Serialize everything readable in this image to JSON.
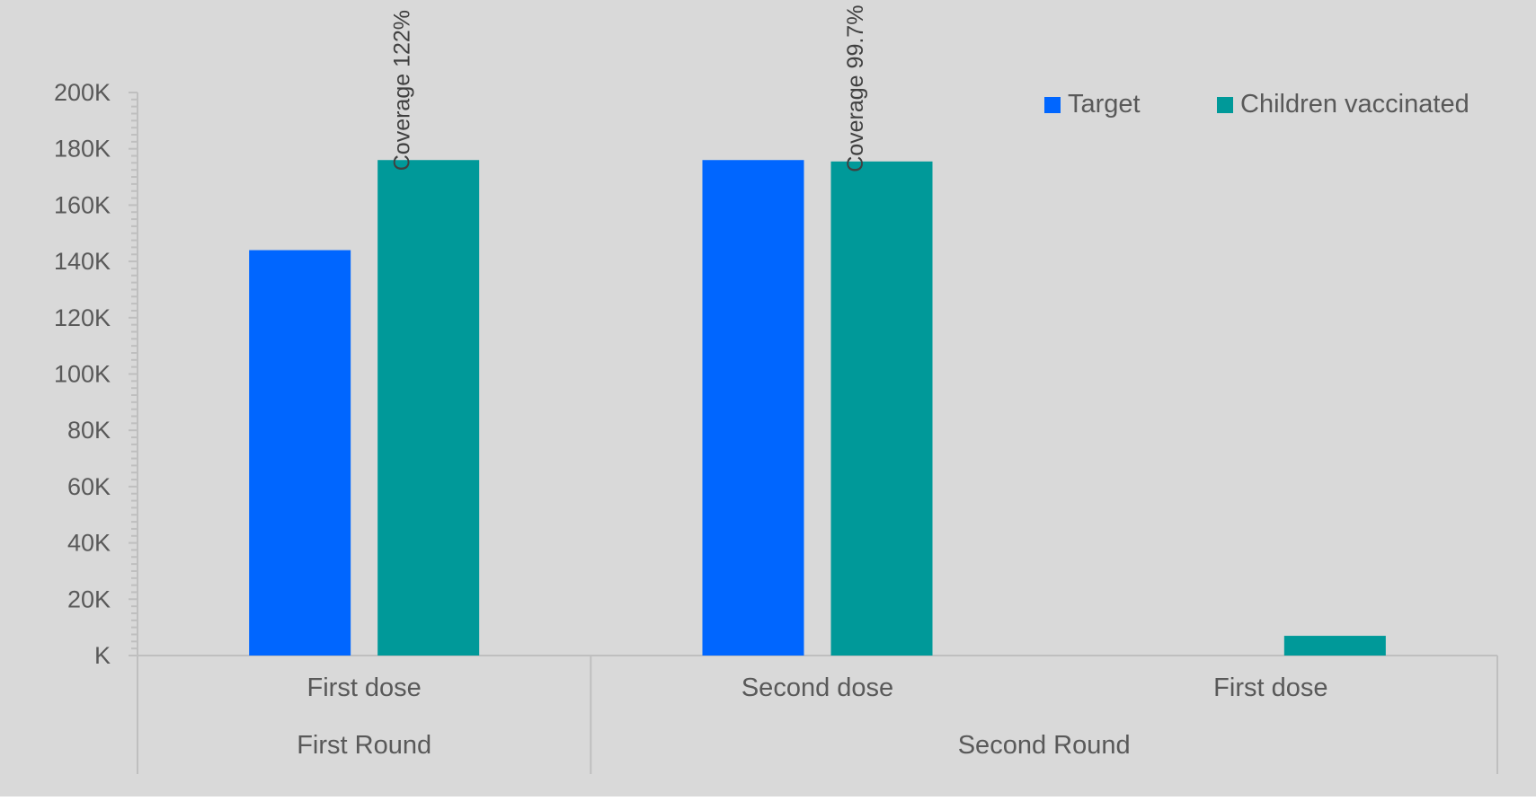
{
  "chart_data": {
    "type": "bar",
    "title": "",
    "xlabel": "",
    "ylabel": "",
    "ylim": [
      0,
      200000
    ],
    "y_ticks": [
      {
        "value": 0,
        "label": "K"
      },
      {
        "value": 20000,
        "label": "20K"
      },
      {
        "value": 40000,
        "label": "40K"
      },
      {
        "value": 60000,
        "label": "60K"
      },
      {
        "value": 80000,
        "label": "80K"
      },
      {
        "value": 100000,
        "label": "100K"
      },
      {
        "value": 120000,
        "label": "120K"
      },
      {
        "value": 140000,
        "label": "140K"
      },
      {
        "value": 160000,
        "label": "160K"
      },
      {
        "value": 180000,
        "label": "180K"
      },
      {
        "value": 200000,
        "label": "200K"
      }
    ],
    "categories": [
      "First dose",
      "Second dose",
      "First dose"
    ],
    "groups": [
      {
        "label": "First Round",
        "categories": [
          0
        ]
      },
      {
        "label": "Second Round",
        "categories": [
          1,
          2
        ]
      }
    ],
    "series": [
      {
        "name": "Target",
        "color": "#0066FF",
        "values": [
          144000,
          176000,
          null
        ]
      },
      {
        "name": "Children vaccinated",
        "color": "#009999",
        "values": [
          176000,
          175500,
          7000
        ]
      }
    ],
    "annotations": [
      {
        "text": "Coverage 122%",
        "category": 0,
        "series": 1
      },
      {
        "text": "Coverage 99.7%",
        "category": 1,
        "series": 1
      }
    ],
    "legend_position": "top-right",
    "grid": false,
    "colors": {
      "background": "#D9D9D9",
      "axis": "#BFBFBF",
      "text": "#595959",
      "annotation": "#404040"
    }
  }
}
